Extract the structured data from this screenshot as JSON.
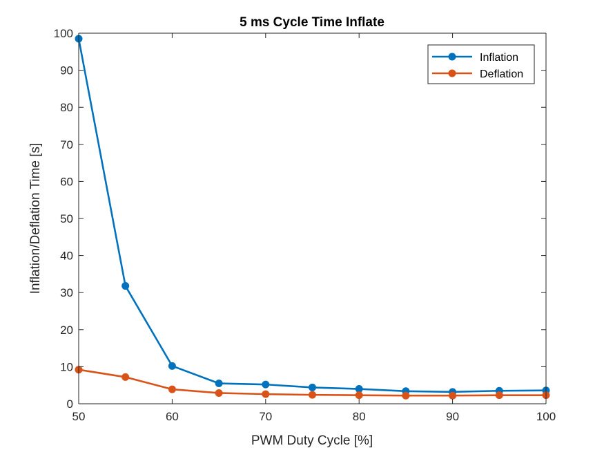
{
  "chart_data": {
    "type": "line",
    "title": "5 ms Cycle Time Inflate",
    "xlabel": "PWM Duty Cycle [%]",
    "ylabel": "Inflation/Deflation Time [s]",
    "xlim": [
      50,
      100
    ],
    "ylim": [
      0,
      100
    ],
    "xticks": [
      50,
      60,
      70,
      80,
      90,
      100
    ],
    "yticks": [
      0,
      10,
      20,
      30,
      40,
      50,
      60,
      70,
      80,
      90,
      100
    ],
    "grid": false,
    "legend_position": "top-right",
    "x": [
      50,
      55,
      60,
      65,
      70,
      75,
      80,
      85,
      90,
      95,
      100
    ],
    "series": [
      {
        "name": "Inflation",
        "color": "#0072BD",
        "marker": "circle",
        "values": [
          98.5,
          31.8,
          10.2,
          5.5,
          5.2,
          4.4,
          4.0,
          3.4,
          3.2,
          3.5,
          3.6
        ]
      },
      {
        "name": "Deflation",
        "color": "#D95319",
        "marker": "circle",
        "values": [
          9.2,
          7.2,
          3.9,
          2.9,
          2.6,
          2.4,
          2.3,
          2.2,
          2.2,
          2.3,
          2.3
        ]
      }
    ]
  }
}
